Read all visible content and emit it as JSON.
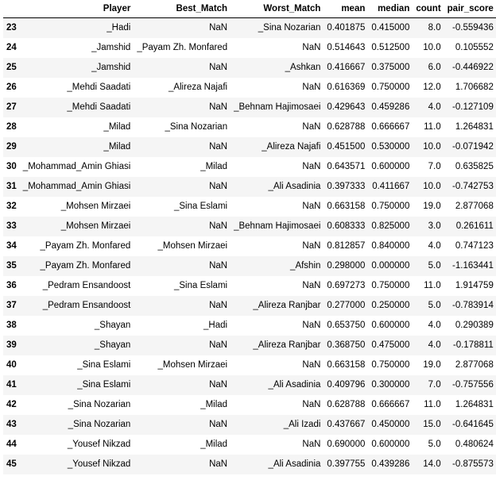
{
  "columns": [
    "",
    "Player",
    "Best_Match",
    "Worst_Match",
    "mean",
    "median",
    "count",
    "pair_score"
  ],
  "rows": [
    {
      "index": "23",
      "cells": [
        "_Hadi",
        "NaN",
        "_Sina Nozarian",
        "0.401875",
        "0.415000",
        "8.0",
        "-0.559436"
      ]
    },
    {
      "index": "24",
      "cells": [
        "_Jamshid",
        "_Payam Zh. Monfared",
        "NaN",
        "0.514643",
        "0.512500",
        "10.0",
        "0.105552"
      ]
    },
    {
      "index": "25",
      "cells": [
        "_Jamshid",
        "NaN",
        "_Ashkan",
        "0.416667",
        "0.375000",
        "6.0",
        "-0.446922"
      ]
    },
    {
      "index": "26",
      "cells": [
        "_Mehdi Saadati",
        "_Alireza Najafi",
        "NaN",
        "0.616369",
        "0.750000",
        "12.0",
        "1.706682"
      ]
    },
    {
      "index": "27",
      "cells": [
        "_Mehdi Saadati",
        "NaN",
        "_Behnam Hajimosaei",
        "0.429643",
        "0.459286",
        "4.0",
        "-0.127109"
      ]
    },
    {
      "index": "28",
      "cells": [
        "_Milad",
        "_Sina Nozarian",
        "NaN",
        "0.628788",
        "0.666667",
        "11.0",
        "1.264831"
      ]
    },
    {
      "index": "29",
      "cells": [
        "_Milad",
        "NaN",
        "_Alireza Najafi",
        "0.451500",
        "0.530000",
        "10.0",
        "-0.071942"
      ]
    },
    {
      "index": "30",
      "cells": [
        "_Mohammad_Amin Ghiasi",
        "_Milad",
        "NaN",
        "0.643571",
        "0.600000",
        "7.0",
        "0.635825"
      ]
    },
    {
      "index": "31",
      "cells": [
        "_Mohammad_Amin Ghiasi",
        "NaN",
        "_Ali Asadinia",
        "0.397333",
        "0.411667",
        "10.0",
        "-0.742753"
      ]
    },
    {
      "index": "32",
      "cells": [
        "_Mohsen Mirzaei",
        "_Sina Eslami",
        "NaN",
        "0.663158",
        "0.750000",
        "19.0",
        "2.877068"
      ]
    },
    {
      "index": "33",
      "cells": [
        "_Mohsen Mirzaei",
        "NaN",
        "_Behnam Hajimosaei",
        "0.608333",
        "0.825000",
        "3.0",
        "0.261611"
      ]
    },
    {
      "index": "34",
      "cells": [
        "_Payam Zh. Monfared",
        "_Mohsen Mirzaei",
        "NaN",
        "0.812857",
        "0.840000",
        "4.0",
        "0.747123"
      ]
    },
    {
      "index": "35",
      "cells": [
        "_Payam Zh. Monfared",
        "NaN",
        "_Afshin",
        "0.298000",
        "0.000000",
        "5.0",
        "-1.163441"
      ]
    },
    {
      "index": "36",
      "cells": [
        "_Pedram Ensandoost",
        "_Sina Eslami",
        "NaN",
        "0.697273",
        "0.750000",
        "11.0",
        "1.914759"
      ]
    },
    {
      "index": "37",
      "cells": [
        "_Pedram Ensandoost",
        "NaN",
        "_Alireza Ranjbar",
        "0.277000",
        "0.250000",
        "5.0",
        "-0.783914"
      ]
    },
    {
      "index": "38",
      "cells": [
        "_Shayan",
        "_Hadi",
        "NaN",
        "0.653750",
        "0.600000",
        "4.0",
        "0.290389"
      ]
    },
    {
      "index": "39",
      "cells": [
        "_Shayan",
        "NaN",
        "_Alireza Ranjbar",
        "0.368750",
        "0.475000",
        "4.0",
        "-0.178811"
      ]
    },
    {
      "index": "40",
      "cells": [
        "_Sina Eslami",
        "_Mohsen Mirzaei",
        "NaN",
        "0.663158",
        "0.750000",
        "19.0",
        "2.877068"
      ]
    },
    {
      "index": "41",
      "cells": [
        "_Sina Eslami",
        "NaN",
        "_Ali Asadinia",
        "0.409796",
        "0.300000",
        "7.0",
        "-0.757556"
      ]
    },
    {
      "index": "42",
      "cells": [
        "_Sina Nozarian",
        "_Milad",
        "NaN",
        "0.628788",
        "0.666667",
        "11.0",
        "1.264831"
      ]
    },
    {
      "index": "43",
      "cells": [
        "_Sina Nozarian",
        "NaN",
        "_Ali Izadi",
        "0.437667",
        "0.450000",
        "15.0",
        "-0.641645"
      ]
    },
    {
      "index": "44",
      "cells": [
        "_Yousef Nikzad",
        "_Milad",
        "NaN",
        "0.690000",
        "0.600000",
        "5.0",
        "0.480624"
      ]
    },
    {
      "index": "45",
      "cells": [
        "_Yousef Nikzad",
        "NaN",
        "_Ali Asadinia",
        "0.397755",
        "0.439286",
        "14.0",
        "-0.875573"
      ]
    }
  ]
}
